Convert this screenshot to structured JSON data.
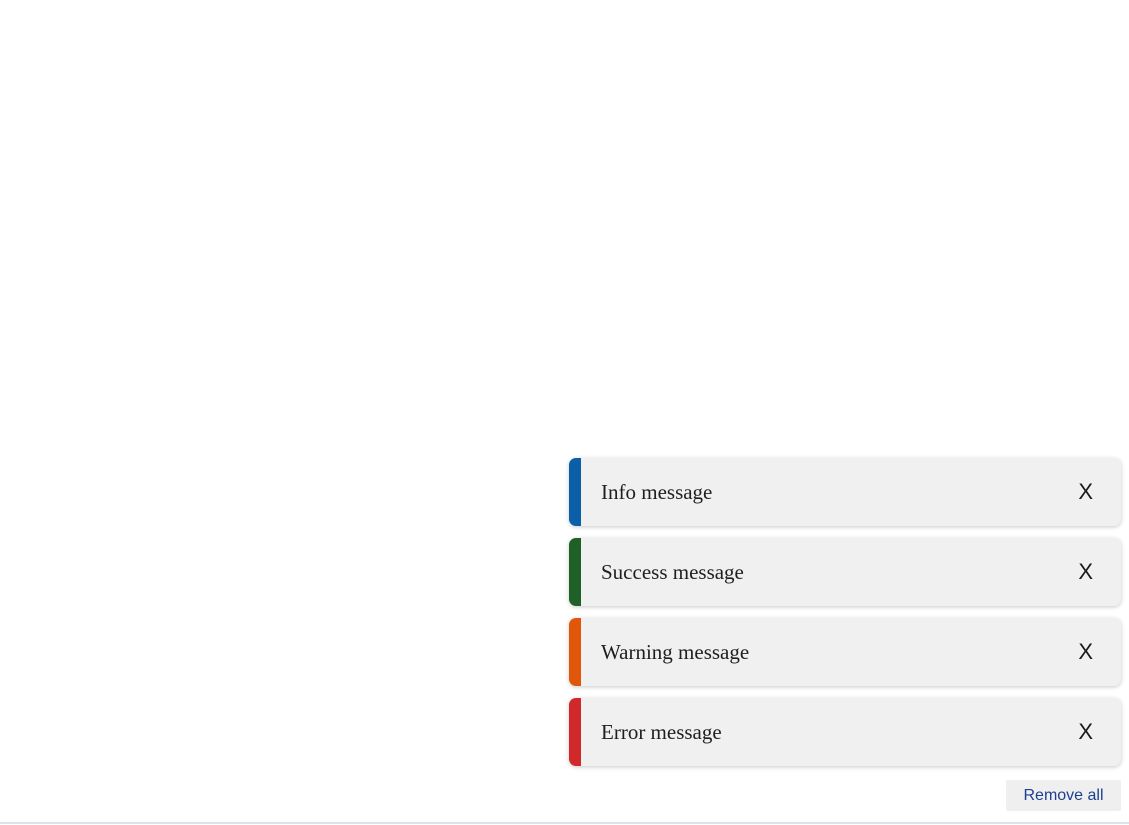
{
  "toasts": [
    {
      "type": "info",
      "message": "Info message",
      "close_label": "X",
      "color": "#0b5ea8"
    },
    {
      "type": "success",
      "message": "Success message",
      "close_label": "X",
      "color": "#1f5f28"
    },
    {
      "type": "warning",
      "message": "Warning message",
      "close_label": "X",
      "color": "#e0560a"
    },
    {
      "type": "error",
      "message": "Error message",
      "close_label": "X",
      "color": "#d0282b"
    }
  ],
  "remove_all_label": "Remove all"
}
